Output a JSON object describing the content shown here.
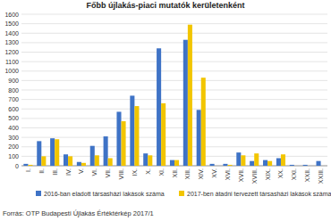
{
  "chart_data": {
    "type": "bar",
    "title": "Főbb újlakás-piaci mutatók kerületenként",
    "categories": [
      "I.",
      "II.",
      "III.",
      "IV.",
      "V.",
      "VI.",
      "VII.",
      "VIII.",
      "IX.",
      "X.",
      "XI.",
      "XII.",
      "XIII.",
      "XIV.",
      "XV.",
      "XVI.",
      "XVII.",
      "XVIII.",
      "XIX.",
      "XX.",
      "XXI.",
      "XXII.",
      "XXIII."
    ],
    "series": [
      {
        "name": "2016-ban eladott társasházi lakások száma",
        "color": "#3f73c6",
        "values": [
          20,
          260,
          290,
          120,
          40,
          210,
          310,
          570,
          740,
          130,
          1240,
          60,
          1330,
          590,
          20,
          20,
          140,
          50,
          60,
          80,
          10,
          10,
          50
        ]
      },
      {
        "name": "2017-ben átadni tervezett társasházi lakások száma",
        "color": "#f2c500",
        "values": [
          10,
          100,
          280,
          100,
          30,
          110,
          80,
          470,
          630,
          110,
          660,
          60,
          1490,
          930,
          0,
          10,
          110,
          130,
          50,
          120,
          0,
          0,
          0
        ]
      }
    ],
    "ylim": [
      0,
      1600
    ],
    "yticks": [
      0,
      100,
      200,
      300,
      400,
      500,
      600,
      700,
      800,
      900,
      1000,
      1100,
      1200,
      1300,
      1400,
      1500,
      1600
    ],
    "grid": true,
    "legend": "bottom",
    "source": "Forrás: OTP Budapesti Újlakás Értéktérkép 2017/1"
  }
}
